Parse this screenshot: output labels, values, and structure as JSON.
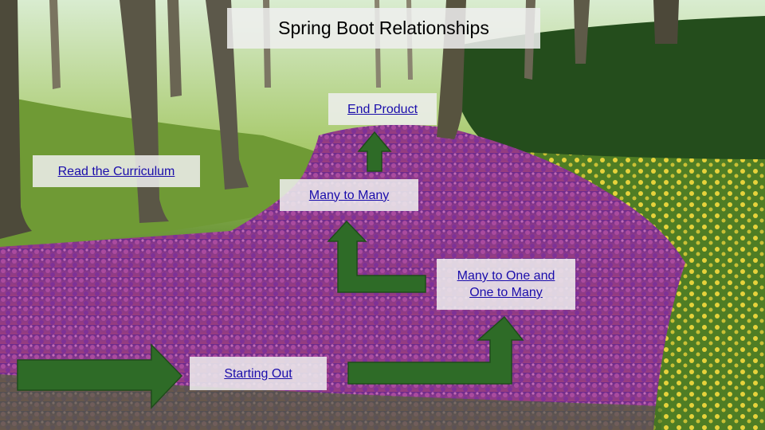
{
  "slide": {
    "title": "Spring Boot Relationships",
    "links": {
      "end_product": "End Product",
      "read_curriculum": "Read the Curriculum",
      "many_to_many": "Many to Many",
      "many_to_one_line1": "Many to One and",
      "many_to_one_line2": "One to Many",
      "starting_out": "Starting Out"
    }
  },
  "colors": {
    "arrow_fill": "#2e6b27",
    "arrow_stroke": "#1e4d1a",
    "link": "#1a0dab",
    "label_bg": "#efefef"
  }
}
